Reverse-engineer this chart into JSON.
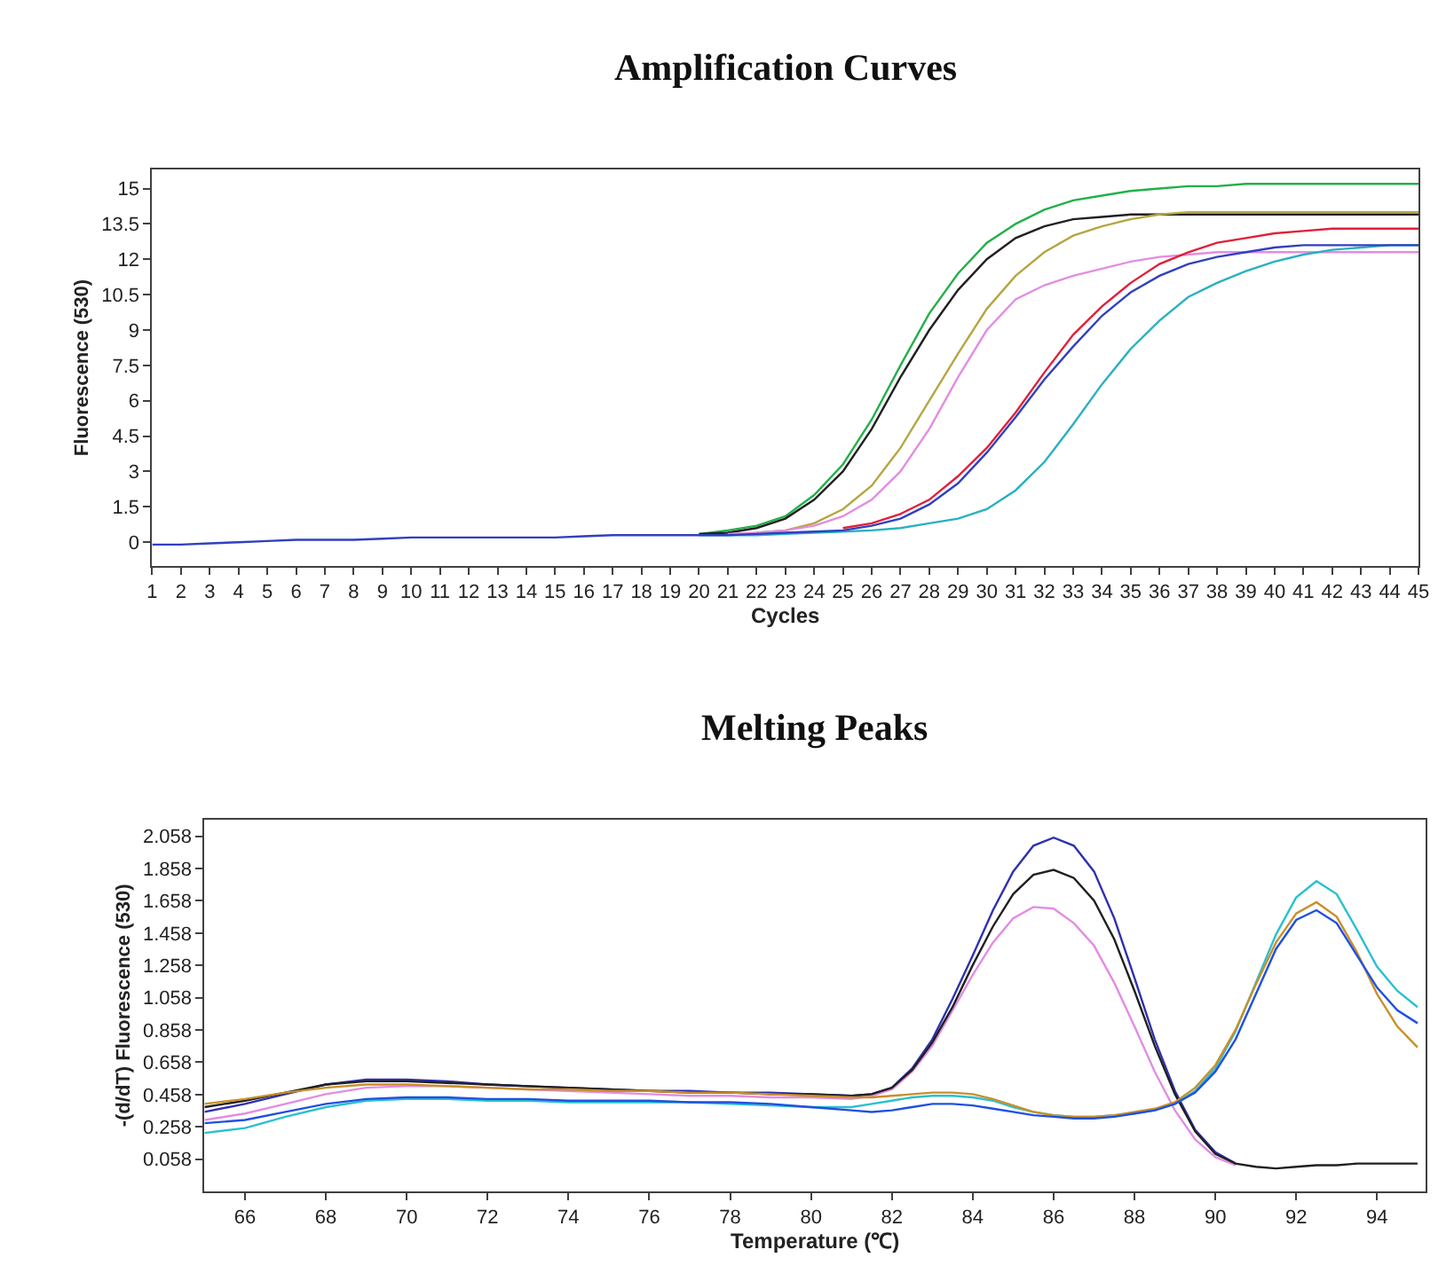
{
  "chart_data": [
    {
      "type": "line",
      "title": "Amplification Curves",
      "xlabel": "Cycles",
      "ylabel": "Fluorescence (530)",
      "x": [
        1,
        2,
        3,
        4,
        5,
        6,
        7,
        8,
        9,
        10,
        11,
        12,
        13,
        14,
        15,
        16,
        17,
        18,
        19,
        20,
        21,
        22,
        23,
        24,
        25,
        26,
        27,
        28,
        29,
        30,
        31,
        32,
        33,
        34,
        35,
        36,
        37,
        38,
        39,
        40,
        41,
        42,
        43,
        44,
        45
      ],
      "xlim": [
        1,
        45
      ],
      "xticks": [
        1,
        2,
        3,
        4,
        5,
        6,
        7,
        8,
        9,
        10,
        11,
        12,
        13,
        14,
        15,
        16,
        17,
        18,
        19,
        20,
        21,
        22,
        23,
        24,
        25,
        26,
        27,
        28,
        29,
        30,
        31,
        32,
        33,
        34,
        35,
        36,
        37,
        38,
        39,
        40,
        41,
        42,
        43,
        44,
        45
      ],
      "ylim": [
        -1,
        15.8
      ],
      "yticks": [
        0,
        1.5,
        3,
        4.5,
        6,
        7.5,
        9,
        10.5,
        12,
        13.5,
        15
      ],
      "series": [
        {
          "color": "#22b04a",
          "values": [
            null,
            null,
            null,
            null,
            null,
            null,
            null,
            null,
            null,
            null,
            null,
            null,
            null,
            null,
            null,
            null,
            null,
            null,
            null,
            0.35,
            0.5,
            0.7,
            1.1,
            2.0,
            3.3,
            5.2,
            7.5,
            9.7,
            11.4,
            12.7,
            13.5,
            14.1,
            14.5,
            14.7,
            14.9,
            15.0,
            15.1,
            15.1,
            15.2,
            15.2,
            15.2,
            15.2,
            15.2,
            15.2,
            15.2
          ]
        },
        {
          "color": "#202020",
          "values": [
            null,
            null,
            null,
            null,
            null,
            null,
            null,
            null,
            null,
            null,
            null,
            null,
            null,
            null,
            null,
            null,
            null,
            null,
            null,
            0.35,
            0.4,
            0.6,
            1.0,
            1.8,
            3.0,
            4.8,
            7.0,
            9.0,
            10.7,
            12.0,
            12.9,
            13.4,
            13.7,
            13.8,
            13.9,
            13.9,
            13.9,
            13.9,
            13.9,
            13.9,
            13.9,
            13.9,
            13.9,
            13.9,
            13.9
          ]
        },
        {
          "color": "#b5a642",
          "values": [
            null,
            null,
            null,
            null,
            null,
            null,
            null,
            null,
            null,
            null,
            null,
            null,
            null,
            null,
            null,
            null,
            null,
            null,
            null,
            null,
            null,
            0.4,
            0.5,
            0.8,
            1.4,
            2.4,
            4.0,
            6.0,
            8.0,
            9.9,
            11.3,
            12.3,
            13.0,
            13.4,
            13.7,
            13.9,
            14.0,
            14.0,
            14.0,
            14.0,
            14.0,
            14.0,
            14.0,
            14.0,
            14.0
          ]
        },
        {
          "color": "#e28de2",
          "values": [
            null,
            null,
            null,
            null,
            null,
            null,
            null,
            null,
            null,
            null,
            null,
            null,
            null,
            null,
            null,
            null,
            null,
            null,
            null,
            null,
            0.35,
            0.4,
            0.5,
            0.7,
            1.1,
            1.8,
            3.0,
            4.8,
            7.0,
            9.0,
            10.3,
            10.9,
            11.3,
            11.6,
            11.9,
            12.1,
            12.2,
            12.3,
            12.3,
            12.3,
            12.3,
            12.3,
            12.3,
            12.3,
            12.3
          ]
        },
        {
          "color": "#e0203a",
          "values": [
            null,
            null,
            null,
            null,
            null,
            null,
            null,
            null,
            null,
            null,
            null,
            null,
            null,
            null,
            null,
            null,
            null,
            null,
            null,
            null,
            null,
            null,
            null,
            null,
            0.6,
            0.8,
            1.2,
            1.8,
            2.8,
            4.0,
            5.5,
            7.2,
            8.8,
            10.0,
            11.0,
            11.8,
            12.3,
            12.7,
            12.9,
            13.1,
            13.2,
            13.3,
            13.3,
            13.3,
            13.3
          ]
        },
        {
          "color": "#2ab0c0",
          "values": [
            null,
            null,
            null,
            null,
            null,
            null,
            null,
            null,
            null,
            null,
            null,
            null,
            null,
            null,
            null,
            null,
            null,
            null,
            null,
            0.3,
            0.3,
            0.3,
            0.35,
            0.4,
            0.45,
            0.5,
            0.6,
            0.8,
            1.0,
            1.4,
            2.2,
            3.4,
            5.0,
            6.7,
            8.2,
            9.4,
            10.4,
            11.0,
            11.5,
            11.9,
            12.2,
            12.4,
            12.5,
            12.6,
            12.6
          ]
        },
        {
          "color": "#3040c0",
          "values": [
            -0.1,
            -0.1,
            -0.05,
            0,
            0.05,
            0.1,
            0.1,
            0.1,
            0.15,
            0.2,
            0.2,
            0.2,
            0.2,
            0.2,
            0.2,
            0.25,
            0.3,
            0.3,
            0.3,
            0.3,
            0.3,
            0.35,
            0.4,
            0.45,
            0.5,
            0.7,
            1.0,
            1.6,
            2.5,
            3.8,
            5.3,
            6.9,
            8.3,
            9.6,
            10.6,
            11.3,
            11.8,
            12.1,
            12.3,
            12.5,
            12.6,
            12.6,
            12.6,
            12.6,
            12.6
          ]
        }
      ]
    },
    {
      "type": "line",
      "title": "Melting Peaks",
      "xlabel": "Temperature (℃)",
      "ylabel": "-(d/dT) Fluorescence (530)",
      "x": [
        65,
        66,
        67,
        68,
        69,
        70,
        71,
        72,
        73,
        74,
        75,
        76,
        77,
        78,
        79,
        80,
        81,
        81.5,
        82,
        82.5,
        83,
        83.5,
        84,
        84.5,
        85,
        85.5,
        86,
        86.5,
        87,
        87.5,
        88,
        88.5,
        89,
        89.5,
        90,
        90.5,
        91,
        91.5,
        92,
        92.5,
        93,
        93.5,
        94,
        94.5,
        95
      ],
      "xlim": [
        65,
        95.2
      ],
      "xticks": [
        66,
        68,
        70,
        72,
        74,
        76,
        78,
        80,
        82,
        84,
        86,
        88,
        90,
        92,
        94
      ],
      "ylim": [
        -0.14,
        2.16
      ],
      "yticks": [
        0.058,
        0.258,
        0.458,
        0.658,
        0.858,
        1.058,
        1.258,
        1.458,
        1.658,
        1.858,
        2.058
      ],
      "series": [
        {
          "color": "#3030b0",
          "values": [
            0.35,
            0.4,
            0.46,
            0.52,
            0.55,
            0.55,
            0.54,
            0.52,
            0.51,
            0.5,
            0.49,
            0.48,
            0.48,
            0.47,
            0.47,
            0.46,
            0.45,
            0.46,
            0.5,
            0.62,
            0.8,
            1.05,
            1.32,
            1.6,
            1.84,
            2.0,
            2.05,
            2.0,
            1.84,
            1.55,
            1.18,
            0.8,
            0.48,
            0.24,
            0.1,
            0.03,
            null,
            null,
            null,
            null,
            null,
            null,
            null,
            null,
            null
          ]
        },
        {
          "color": "#e28de2",
          "values": [
            0.3,
            0.34,
            0.4,
            0.46,
            0.5,
            0.51,
            0.51,
            0.5,
            0.49,
            0.48,
            0.47,
            0.46,
            0.45,
            0.45,
            0.44,
            0.44,
            0.43,
            0.45,
            0.49,
            0.6,
            0.76,
            0.98,
            1.2,
            1.4,
            1.55,
            1.62,
            1.61,
            1.52,
            1.38,
            1.15,
            0.88,
            0.6,
            0.36,
            0.18,
            0.07,
            0.02,
            null,
            null,
            null,
            null,
            null,
            null,
            null,
            null,
            null
          ]
        },
        {
          "color": "#202020",
          "values": [
            0.38,
            0.42,
            0.47,
            0.52,
            0.54,
            0.54,
            0.53,
            0.52,
            0.51,
            0.5,
            0.49,
            0.48,
            0.47,
            0.47,
            0.46,
            0.46,
            0.45,
            0.46,
            0.5,
            0.61,
            0.78,
            1.0,
            1.26,
            1.5,
            1.7,
            1.82,
            1.85,
            1.8,
            1.66,
            1.42,
            1.1,
            0.76,
            0.46,
            0.23,
            0.09,
            0.03,
            0.01,
            0.0,
            0.01,
            0.02,
            0.02,
            0.03,
            0.03,
            0.03,
            0.03
          ]
        },
        {
          "color": "#2ac0d0",
          "values": [
            0.22,
            0.25,
            0.32,
            0.38,
            0.42,
            0.43,
            0.43,
            0.42,
            0.42,
            0.41,
            0.41,
            0.41,
            0.41,
            0.4,
            0.39,
            0.38,
            0.38,
            0.4,
            0.42,
            0.44,
            0.45,
            0.45,
            0.44,
            0.42,
            0.38,
            0.35,
            0.33,
            0.32,
            0.32,
            0.33,
            0.34,
            0.36,
            0.4,
            0.48,
            0.62,
            0.85,
            1.15,
            1.45,
            1.68,
            1.78,
            1.7,
            1.48,
            1.25,
            1.1,
            1.0
          ]
        },
        {
          "color": "#c8902a",
          "values": [
            0.4,
            0.43,
            0.47,
            0.5,
            0.52,
            0.52,
            0.51,
            0.5,
            0.49,
            0.49,
            0.48,
            0.48,
            0.47,
            0.47,
            0.46,
            0.45,
            0.44,
            0.44,
            0.45,
            0.46,
            0.47,
            0.47,
            0.46,
            0.43,
            0.39,
            0.35,
            0.33,
            0.32,
            0.32,
            0.33,
            0.35,
            0.37,
            0.41,
            0.5,
            0.64,
            0.86,
            1.14,
            1.4,
            1.58,
            1.65,
            1.56,
            1.34,
            1.08,
            0.88,
            0.75
          ]
        },
        {
          "color": "#2050e0",
          "values": [
            0.28,
            0.3,
            0.35,
            0.4,
            0.43,
            0.44,
            0.44,
            0.43,
            0.43,
            0.42,
            0.42,
            0.42,
            0.41,
            0.41,
            0.4,
            0.38,
            0.36,
            0.35,
            0.36,
            0.38,
            0.4,
            0.4,
            0.39,
            0.37,
            0.35,
            0.33,
            0.32,
            0.31,
            0.31,
            0.32,
            0.34,
            0.36,
            0.4,
            0.47,
            0.6,
            0.8,
            1.08,
            1.36,
            1.54,
            1.6,
            1.52,
            1.32,
            1.12,
            0.98,
            0.9
          ]
        }
      ]
    }
  ]
}
